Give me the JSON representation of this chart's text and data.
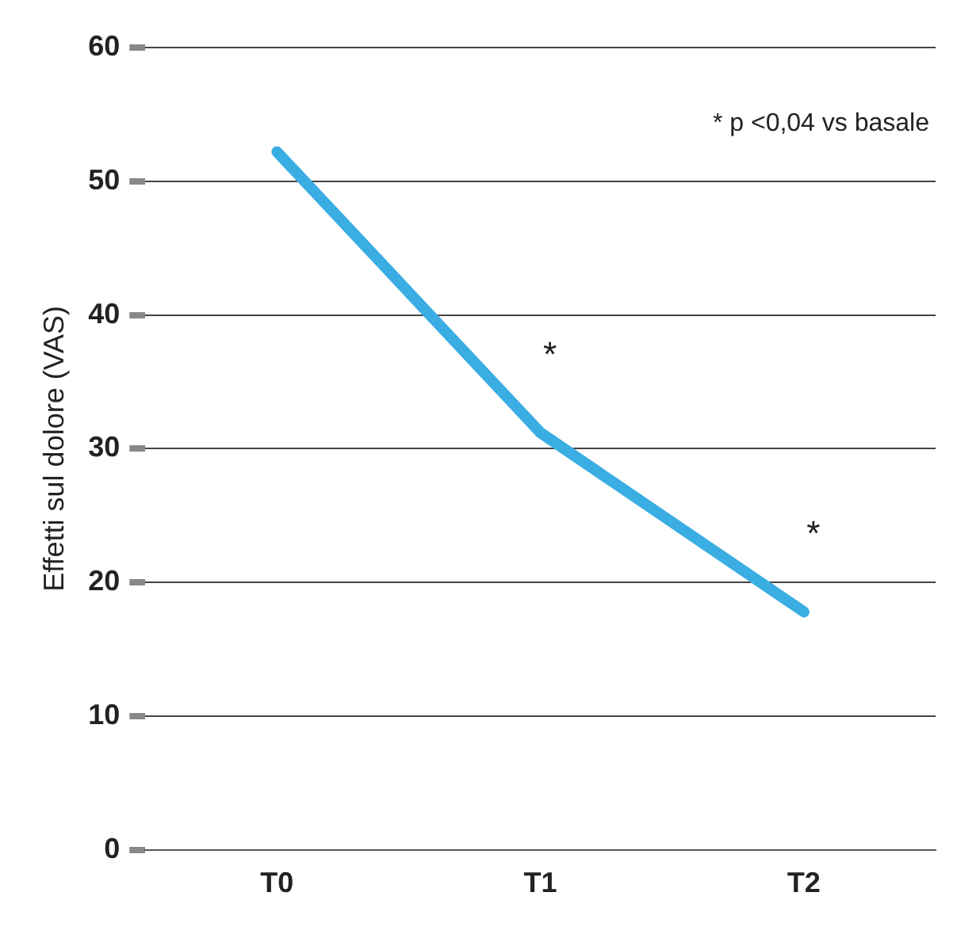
{
  "chart_data": {
    "type": "line",
    "ylabel": "Effetti sul dolore (VAS)",
    "categories": [
      "T0",
      "T1",
      "T2"
    ],
    "series": [
      {
        "color": "#3aaee2",
        "values": [
          52.2,
          31.2,
          17.8
        ],
        "value_labels": [
          null,
          "*",
          "*"
        ]
      }
    ],
    "ylim": [
      0,
      60
    ],
    "yticks": [
      0,
      10,
      20,
      30,
      40,
      50,
      60
    ],
    "grid": "y",
    "legend": false,
    "marker": "none",
    "line_style": "solid",
    "annotations": [
      "* p <0,04 vs basale"
    ]
  }
}
